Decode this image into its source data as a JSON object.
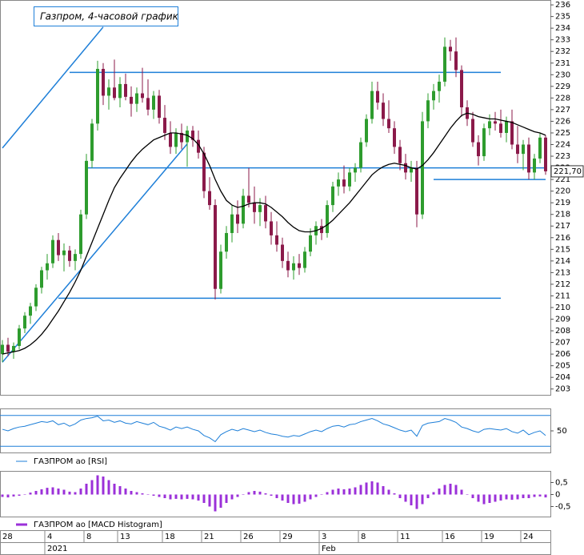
{
  "chart_data": {
    "type": "candlestick",
    "title": "Газпром, 4-часовой график",
    "categories": [
      "28",
      null,
      null,
      null,
      null,
      null,
      null,
      null,
      "4",
      null,
      null,
      null,
      null,
      null,
      null,
      "8",
      null,
      null,
      null,
      null,
      null,
      "13",
      null,
      null,
      null,
      null,
      null,
      null,
      null,
      "18",
      null,
      null,
      null,
      null,
      null,
      null,
      "21",
      null,
      null,
      null,
      null,
      null,
      null,
      "26",
      null,
      null,
      null,
      null,
      null,
      null,
      "29",
      null,
      null,
      null,
      null,
      null,
      null,
      "3",
      null,
      null,
      null,
      null,
      null,
      null,
      "8",
      null,
      null,
      null,
      null,
      null,
      null,
      "11",
      null,
      null,
      null,
      null,
      null,
      null,
      null,
      "16",
      null,
      null,
      null,
      null,
      null,
      null,
      "19",
      null,
      null,
      null,
      null,
      null,
      null,
      "24",
      null,
      null,
      null,
      null
    ],
    "periods": [
      {
        "label": "2021",
        "start": 8
      },
      {
        "label": "Feb",
        "start": 57
      }
    ],
    "open": [
      206.0,
      206.8,
      206.2,
      206.7,
      208.2,
      209.3,
      210.1,
      211.7,
      213.2,
      213.8,
      215.8,
      214.5,
      214.9,
      214.0,
      214.6,
      218.0,
      222.6,
      225.8,
      230.5,
      228.2,
      228.9,
      228.0,
      229.2,
      228.1,
      227.5,
      228.4,
      228.0,
      227.0,
      228.2,
      226.3,
      225.0,
      223.8,
      225.0,
      224.2,
      225.2,
      224.4,
      223.3,
      220.0,
      218.8,
      211.6,
      214.8,
      216.4,
      218.0,
      217.2,
      219.6,
      219.0,
      218.2,
      218.8,
      217.4,
      216.2,
      215.4,
      214.0,
      213.2,
      213.8,
      213.4,
      214.8,
      216.2,
      217.0,
      216.4,
      218.8,
      220.4,
      221.0,
      220.4,
      221.6,
      222.0,
      224.2,
      226.2,
      228.6,
      227.6,
      226.2,
      225.4,
      223.8,
      222.4,
      221.6,
      222.0,
      218.0,
      226.0,
      227.8,
      228.6,
      229.4,
      232.4,
      232.0,
      230.4,
      227.2,
      226.2,
      224.2,
      223.0,
      225.4,
      226.0,
      225.8,
      225.0,
      226.0,
      224.0,
      223.2,
      224.0,
      221.6,
      222.8,
      224.6
    ],
    "high": [
      207.2,
      207.4,
      207.0,
      208.5,
      209.6,
      210.4,
      212.0,
      213.5,
      214.6,
      216.2,
      216.4,
      215.5,
      215.3,
      215.0,
      218.4,
      223.2,
      226.2,
      231.2,
      231.0,
      229.6,
      231.3,
      229.8,
      230.1,
      229.0,
      228.9,
      230.6,
      229.6,
      228.6,
      228.7,
      227.4,
      226.0,
      225.4,
      225.8,
      225.6,
      225.6,
      225.2,
      223.8,
      221.2,
      219.3,
      215.4,
      217.0,
      218.8,
      219.2,
      220.2,
      222.0,
      220.4,
      219.4,
      219.6,
      218.2,
      217.4,
      216.0,
      214.8,
      214.4,
      214.6,
      215.2,
      216.8,
      217.4,
      217.6,
      219.2,
      220.8,
      221.6,
      222.2,
      222.0,
      222.4,
      224.6,
      226.6,
      229.4,
      229.4,
      228.4,
      227.8,
      226.0,
      224.4,
      223.2,
      222.6,
      222.6,
      226.8,
      228.4,
      229.2,
      230.0,
      233.2,
      233.0,
      233.2,
      230.8,
      227.8,
      226.8,
      224.8,
      225.8,
      226.6,
      226.8,
      227.0,
      226.4,
      227.0,
      225.6,
      224.4,
      224.6,
      223.2,
      225.0,
      224.8
    ],
    "low": [
      205.3,
      205.8,
      205.6,
      206.4,
      207.8,
      208.6,
      209.7,
      211.2,
      212.4,
      213.4,
      214.0,
      213.1,
      213.5,
      213.2,
      214.2,
      217.6,
      222.0,
      225.2,
      227.4,
      227.0,
      227.8,
      227.2,
      227.8,
      226.4,
      226.8,
      227.6,
      226.5,
      226.2,
      225.8,
      224.4,
      223.2,
      223.2,
      223.6,
      222.1,
      223.8,
      222.8,
      219.4,
      218.4,
      210.7,
      211.2,
      214.2,
      215.6,
      216.4,
      216.8,
      218.6,
      217.2,
      217.0,
      216.8,
      215.4,
      214.8,
      213.4,
      212.6,
      212.4,
      212.8,
      213.0,
      214.4,
      215.4,
      215.8,
      216.0,
      218.2,
      219.6,
      219.8,
      220.0,
      220.8,
      221.6,
      223.8,
      225.8,
      227.0,
      225.6,
      225.0,
      223.2,
      221.8,
      221.0,
      220.8,
      216.9,
      217.6,
      225.4,
      227.0,
      227.6,
      229.0,
      231.2,
      229.8,
      226.4,
      225.6,
      223.8,
      222.2,
      222.6,
      224.8,
      225.2,
      224.6,
      224.2,
      223.6,
      222.4,
      221.8,
      221.0,
      221.0,
      222.4,
      221.4
    ],
    "close": [
      206.8,
      206.2,
      206.7,
      208.2,
      209.3,
      210.1,
      211.7,
      213.2,
      213.8,
      215.8,
      214.5,
      214.9,
      214.0,
      214.6,
      218.0,
      222.6,
      225.8,
      230.5,
      228.2,
      228.9,
      228.0,
      229.2,
      228.1,
      227.5,
      228.4,
      228.0,
      227.0,
      228.2,
      226.3,
      225.0,
      223.8,
      225.0,
      224.2,
      225.2,
      224.4,
      223.3,
      220.0,
      218.8,
      211.6,
      214.8,
      216.4,
      218.0,
      217.2,
      219.6,
      219.0,
      218.2,
      218.8,
      217.4,
      216.2,
      215.4,
      214.0,
      213.2,
      213.8,
      213.4,
      214.8,
      216.2,
      217.0,
      216.4,
      218.8,
      220.4,
      221.0,
      220.4,
      221.6,
      222.0,
      224.2,
      226.2,
      228.6,
      227.6,
      226.2,
      225.4,
      223.8,
      222.4,
      221.6,
      222.0,
      218.0,
      226.0,
      227.8,
      228.6,
      229.4,
      232.4,
      232.0,
      230.4,
      227.2,
      226.2,
      224.2,
      223.0,
      225.4,
      226.0,
      225.8,
      225.0,
      226.0,
      224.0,
      223.2,
      224.0,
      221.6,
      222.8,
      224.6,
      221.7
    ],
    "up_color": "#2e9c2e",
    "down_color": "#8b1a4a",
    "ma": {
      "color": "#000000",
      "values": [
        206.0,
        206.1,
        206.2,
        206.3,
        206.5,
        206.8,
        207.2,
        207.7,
        208.3,
        209.0,
        209.7,
        210.5,
        211.3,
        212.2,
        213.2,
        214.4,
        215.6,
        216.8,
        218.0,
        219.2,
        220.3,
        221.1,
        221.8,
        222.5,
        223.1,
        223.6,
        224.0,
        224.4,
        224.6,
        224.8,
        225.0,
        225.0,
        224.9,
        224.8,
        224.5,
        224.0,
        223.2,
        222.2,
        221.0,
        220.0,
        219.2,
        218.8,
        218.6,
        218.7,
        218.9,
        219.0,
        219.0,
        218.9,
        218.6,
        218.2,
        217.8,
        217.3,
        216.9,
        216.6,
        216.5,
        216.5,
        216.6,
        216.8,
        217.1,
        217.5,
        218.0,
        218.5,
        219.0,
        219.6,
        220.2,
        220.8,
        221.4,
        221.8,
        222.1,
        222.3,
        222.4,
        222.3,
        222.2,
        222.0,
        221.9,
        222.2,
        222.7,
        223.3,
        224.0,
        224.7,
        225.4,
        226.0,
        226.5,
        226.7,
        226.6,
        226.4,
        226.3,
        226.2,
        226.2,
        226.1,
        226.0,
        225.9,
        225.7,
        225.5,
        225.3,
        225.1,
        225.0,
        224.8
      ]
    },
    "trend_lines": {
      "color": "#1e7fd8",
      "lines": [
        {
          "from": [
            12,
            230.2
          ],
          "to": [
            89,
            230.2
          ]
        },
        {
          "from": [
            15,
            222.0
          ],
          "to": [
            97,
            222.0
          ]
        },
        {
          "from": [
            10,
            210.8
          ],
          "to": [
            89,
            210.8
          ]
        },
        {
          "from": [
            77,
            221.0
          ],
          "to": [
            97,
            221.0
          ]
        },
        {
          "from": [
            0,
            205.3
          ],
          "to": [
            33,
            224.05
          ]
        },
        {
          "from": [
            0,
            223.7
          ],
          "to": [
            18,
            234.1
          ]
        }
      ]
    },
    "last_price": {
      "value": 221.7,
      "label": "221,70"
    },
    "ylim": [
      202.5,
      236.35
    ],
    "yticks": [
      203,
      204,
      205,
      206,
      207,
      208,
      209,
      210,
      211,
      212,
      213,
      214,
      215,
      216,
      217,
      218,
      219,
      220,
      221,
      222,
      223,
      224,
      225,
      226,
      227,
      228,
      229,
      230,
      231,
      232,
      233,
      234,
      235,
      236
    ],
    "rsi": {
      "name": "ГАЗПРОМ ао [RSI]",
      "color": "#1e7fd8",
      "levels": [
        30,
        70
      ],
      "ylim": [
        22,
        78
      ],
      "yticks": [
        50
      ],
      "values": [
        52,
        50,
        53,
        55,
        56,
        58,
        60,
        62,
        61,
        63,
        58,
        60,
        56,
        59,
        64,
        66,
        67,
        69,
        63,
        64,
        61,
        63,
        60,
        59,
        62,
        60,
        58,
        61,
        56,
        54,
        51,
        55,
        53,
        55,
        52,
        50,
        44,
        41,
        36,
        45,
        49,
        52,
        50,
        53,
        51,
        49,
        51,
        48,
        46,
        45,
        43,
        42,
        44,
        43,
        46,
        49,
        51,
        49,
        53,
        56,
        57,
        55,
        58,
        59,
        62,
        64,
        66,
        63,
        59,
        57,
        54,
        51,
        49,
        51,
        43,
        57,
        60,
        61,
        62,
        66,
        64,
        61,
        55,
        53,
        50,
        48,
        52,
        53,
        52,
        51,
        53,
        49,
        47,
        51,
        45,
        48,
        50,
        44
      ]
    },
    "macd": {
      "name": "ГАЗПРОМ ао [MACD Histogram]",
      "color": "#9b30d9",
      "ylim": [
        -0.95,
        0.95
      ],
      "yticks": [
        {
          "value": 0.5,
          "label": "0,5"
        },
        0,
        {
          "value": -0.5,
          "label": "-0,5"
        }
      ],
      "values": [
        -0.1,
        -0.12,
        -0.08,
        -0.05,
        0.0,
        0.08,
        0.15,
        0.22,
        0.28,
        0.3,
        0.25,
        0.2,
        0.12,
        0.1,
        0.25,
        0.45,
        0.6,
        0.8,
        0.75,
        0.6,
        0.45,
        0.35,
        0.25,
        0.15,
        0.1,
        0.05,
        0.0,
        -0.05,
        -0.1,
        -0.15,
        -0.2,
        -0.18,
        -0.2,
        -0.18,
        -0.2,
        -0.25,
        -0.35,
        -0.5,
        -0.7,
        -0.55,
        -0.35,
        -0.2,
        -0.1,
        0.0,
        0.1,
        0.15,
        0.12,
        0.05,
        -0.05,
        -0.15,
        -0.25,
        -0.35,
        -0.4,
        -0.38,
        -0.3,
        -0.2,
        -0.1,
        0.0,
        0.1,
        0.2,
        0.25,
        0.22,
        0.25,
        0.3,
        0.4,
        0.5,
        0.55,
        0.5,
        0.35,
        0.2,
        0.05,
        -0.15,
        -0.3,
        -0.45,
        -0.6,
        -0.4,
        -0.15,
        0.1,
        0.25,
        0.4,
        0.45,
        0.4,
        0.2,
        0.0,
        -0.15,
        -0.3,
        -0.4,
        -0.35,
        -0.3,
        -0.25,
        -0.2,
        -0.22,
        -0.2,
        -0.15,
        -0.15,
        -0.1,
        -0.08,
        -0.12
      ]
    }
  }
}
